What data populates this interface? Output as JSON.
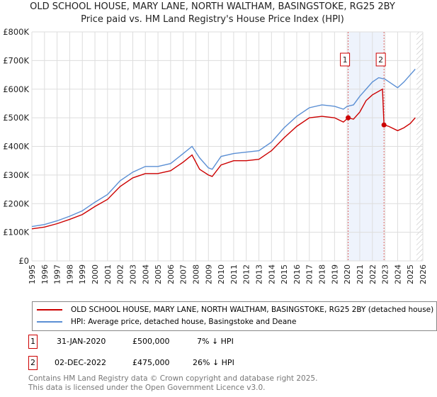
{
  "title": "OLD SCHOOL HOUSE, MARY LANE, NORTH WALTHAM, BASINGSTOKE, RG25 2BY",
  "subtitle": "Price paid vs. HM Land Registry's House Price Index (HPI)",
  "chart_data": {
    "type": "line",
    "xlim": [
      1995,
      2026
    ],
    "ylim": [
      0,
      800000
    ],
    "yticks": [
      0,
      100000,
      200000,
      300000,
      400000,
      500000,
      600000,
      700000,
      800000
    ],
    "ytick_labels": [
      "£0",
      "£100K",
      "£200K",
      "£300K",
      "£400K",
      "£500K",
      "£600K",
      "£700K",
      "£800K"
    ],
    "xticks": [
      1995,
      1996,
      1997,
      1998,
      1999,
      2000,
      2001,
      2002,
      2003,
      2004,
      2005,
      2006,
      2007,
      2008,
      2009,
      2010,
      2011,
      2012,
      2013,
      2014,
      2015,
      2016,
      2017,
      2018,
      2019,
      2020,
      2021,
      2022,
      2023,
      2024,
      2025,
      2026
    ],
    "grid": true,
    "series": [
      {
        "name": "OLD SCHOOL HOUSE, MARY LANE, NORTH WALTHAM, BASINGSTOKE, RG25 2BY (detached house)",
        "color": "#cc0000",
        "x": [
          1995,
          1996,
          1997,
          1998,
          1999,
          2000,
          2001,
          2002,
          2003,
          2004,
          2005,
          2006,
          2007,
          2007.7,
          2008.3,
          2009,
          2009.3,
          2010,
          2011,
          2012,
          2013,
          2014,
          2015,
          2016,
          2017,
          2018,
          2019,
          2019.7,
          2020.08,
          2020.5,
          2021,
          2021.5,
          2022,
          2022.8,
          2022.92,
          2023.3,
          2024,
          2024.5,
          2025,
          2025.4
        ],
        "y": [
          112000,
          118000,
          130000,
          145000,
          162000,
          190000,
          215000,
          260000,
          290000,
          305000,
          305000,
          315000,
          345000,
          370000,
          320000,
          300000,
          295000,
          335000,
          350000,
          350000,
          355000,
          385000,
          430000,
          470000,
          500000,
          505000,
          500000,
          485000,
          500000,
          495000,
          520000,
          560000,
          580000,
          600000,
          475000,
          470000,
          455000,
          465000,
          480000,
          500000
        ]
      },
      {
        "name": "HPI: Average price, detached house, Basingstoke and Deane",
        "color": "#5b8fd4",
        "x": [
          1995,
          1996,
          1997,
          1998,
          1999,
          2000,
          2001,
          2002,
          2003,
          2004,
          2005,
          2006,
          2007,
          2007.7,
          2008.3,
          2009,
          2009.3,
          2010,
          2011,
          2012,
          2013,
          2014,
          2015,
          2016,
          2017,
          2018,
          2019,
          2019.7,
          2020,
          2020.5,
          2021,
          2021.5,
          2022,
          2022.5,
          2023,
          2023.5,
          2024,
          2024.5,
          2025,
          2025.4
        ],
        "y": [
          120000,
          127000,
          140000,
          156000,
          175000,
          205000,
          232000,
          280000,
          310000,
          330000,
          330000,
          340000,
          375000,
          400000,
          360000,
          325000,
          320000,
          365000,
          375000,
          380000,
          385000,
          415000,
          465000,
          505000,
          535000,
          545000,
          540000,
          530000,
          540000,
          545000,
          575000,
          600000,
          625000,
          640000,
          635000,
          620000,
          605000,
          625000,
          650000,
          670000
        ]
      }
    ],
    "annotations": [
      {
        "label": "1",
        "x": 2020.08
      },
      {
        "label": "2",
        "x": 2022.92
      }
    ],
    "shaded": [
      2020.08,
      2022.92
    ],
    "hatched_from": 2025.5
  },
  "legend": {
    "red": "OLD SCHOOL HOUSE, MARY LANE, NORTH WALTHAM, BASINGSTOKE, RG25 2BY (detached house)",
    "blue": "HPI: Average price, detached house, Basingstoke and Deane"
  },
  "transactions": [
    {
      "n": "1",
      "date": "31-JAN-2020",
      "price": "£500,000",
      "hpi": "7% ↓ HPI"
    },
    {
      "n": "2",
      "date": "02-DEC-2022",
      "price": "£475,000",
      "hpi": "26% ↓ HPI"
    }
  ],
  "footer": {
    "line1": "Contains HM Land Registry data © Crown copyright and database right 2025.",
    "line2": "This data is licensed under the Open Government Licence v3.0."
  }
}
